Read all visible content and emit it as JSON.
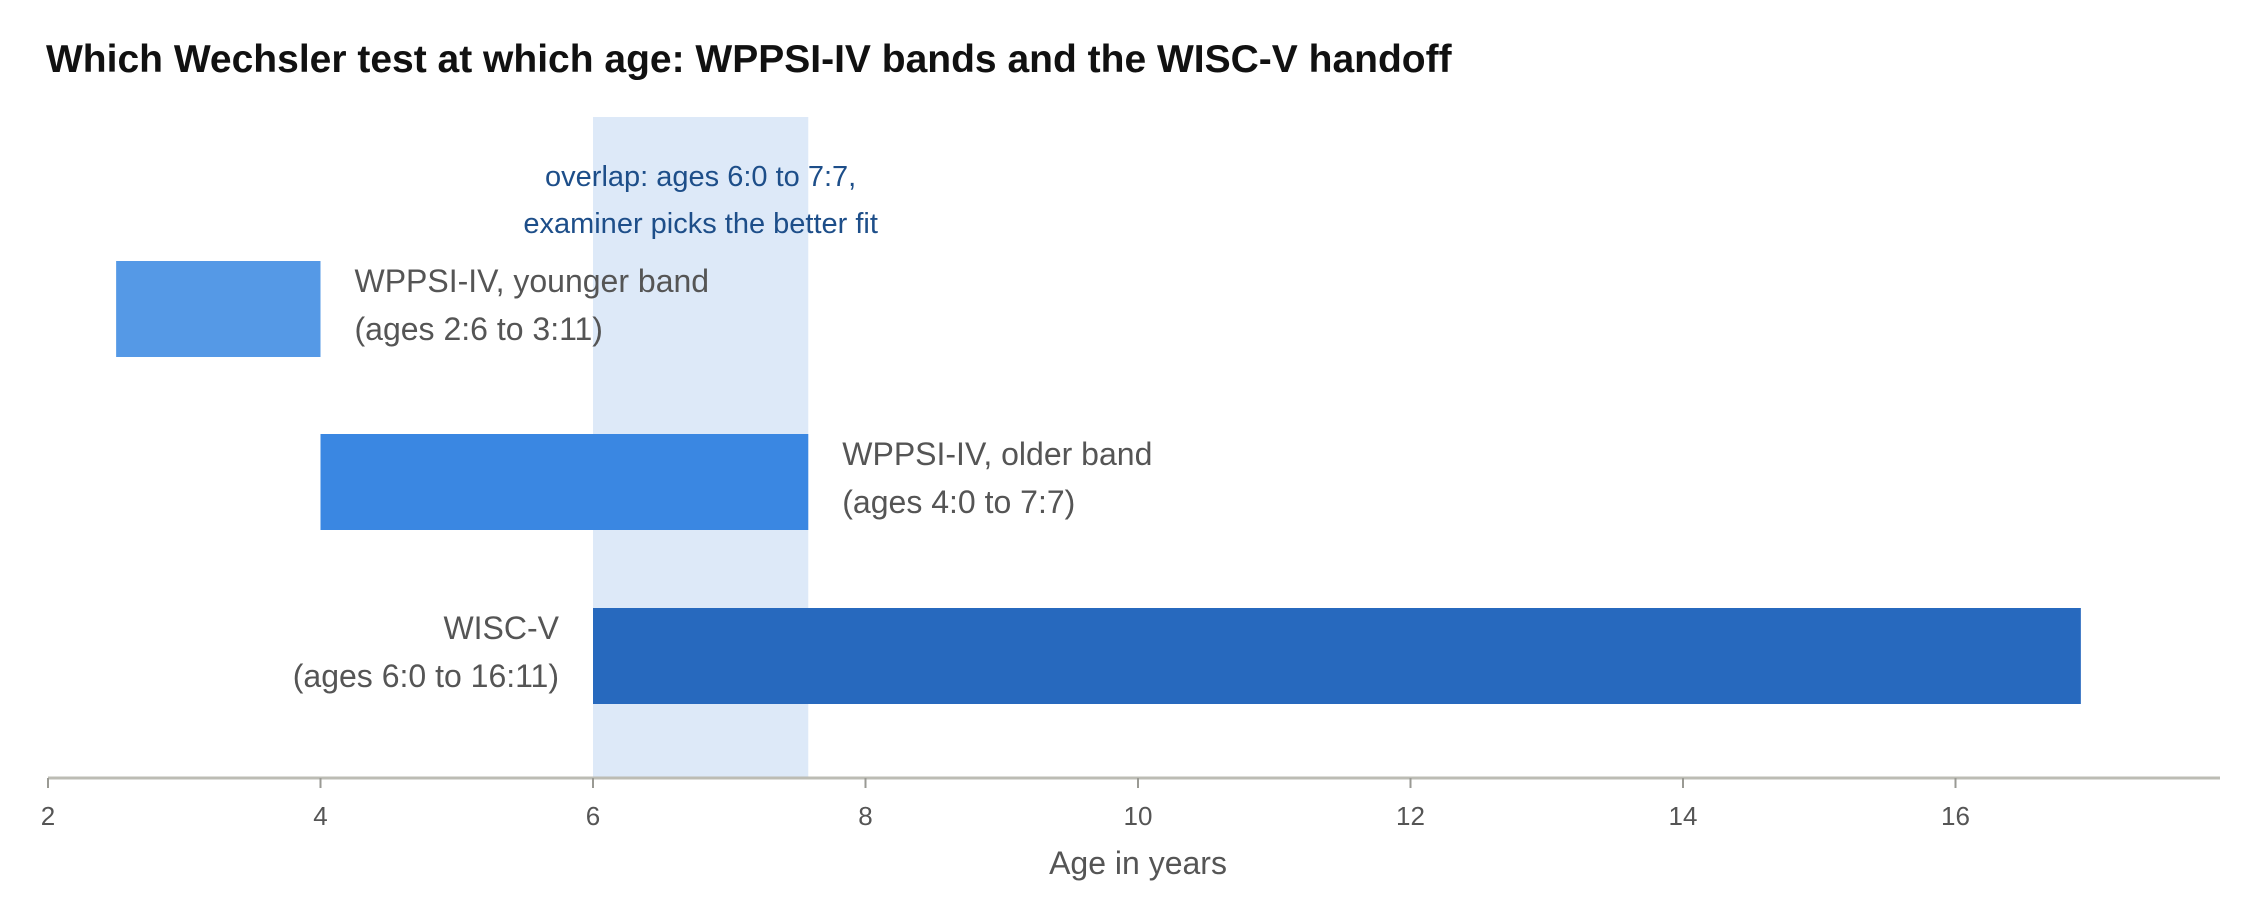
{
  "chart_data": {
    "type": "bar",
    "orientation": "horizontal",
    "title": "Which Wechsler test at which age: WPPSI-IV bands and the WISC-V handoff",
    "xlabel": "Age in years",
    "xlim": [
      2,
      18
    ],
    "xticks": [
      2,
      4,
      6,
      8,
      10,
      12,
      14,
      16
    ],
    "grid": false,
    "bars": [
      {
        "line1": "WPPSI-IV, younger band",
        "line2": "(ages 2:6 to 3:11)",
        "start": 2.5,
        "end": 4.0,
        "color": "#5599e6",
        "label_side": "right"
      },
      {
        "line1": "WPPSI-IV, older band",
        "line2": "(ages 4:0 to 7:7)",
        "start": 4.0,
        "end": 7.58,
        "color": "#3a87e2",
        "label_side": "right"
      },
      {
        "line1": "WISC-V",
        "line2": "(ages 6:0 to 16:11)",
        "start": 6.0,
        "end": 16.92,
        "color": "#2769be",
        "label_side": "left"
      }
    ],
    "overlap": {
      "start": 6.0,
      "end": 7.58,
      "color": "#dde9f8",
      "line1": "overlap: ages 6:0 to 7:7,",
      "line2": "examiner picks the better fit"
    }
  }
}
